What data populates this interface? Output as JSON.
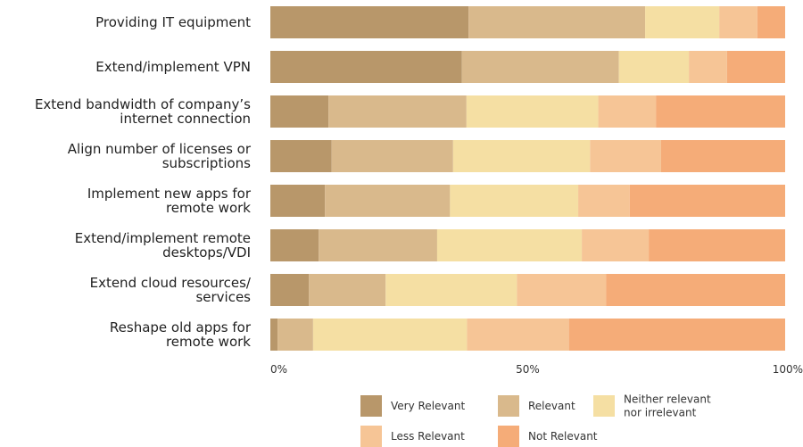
{
  "chart_data": {
    "type": "bar",
    "orientation": "horizontal",
    "stacked": "percent",
    "categories": [
      [
        "Providing IT equipment"
      ],
      [
        "Extend/implement VPN"
      ],
      [
        "Extend bandwidth of company’s",
        "internet connection"
      ],
      [
        "Align number of licenses or",
        "subscriptions"
      ],
      [
        "Implement new apps for",
        "remote work"
      ],
      [
        "Extend/implement remote",
        "desktops/VDI"
      ],
      [
        "Extend cloud resources/",
        "services"
      ],
      [
        "Reshape old apps for",
        "remote work"
      ]
    ],
    "series": [
      {
        "name": "Very Relevant",
        "color": "#B8976A",
        "values": [
          38.5,
          37.2,
          11.3,
          11.9,
          10.6,
          9.4,
          7.5,
          1.4
        ]
      },
      {
        "name": "Relevant",
        "color": "#D9B98C",
        "values": [
          34.3,
          30.5,
          26.8,
          23.6,
          24.3,
          23.0,
          14.9,
          6.9
        ]
      },
      {
        "name": "Neither relevant nor irrelevant",
        "color": "#F5DFA3",
        "values": [
          14.4,
          13.6,
          25.6,
          26.6,
          24.9,
          28.1,
          25.5,
          29.9
        ]
      },
      {
        "name": "Less Relevant",
        "color": "#F6C596",
        "values": [
          7.4,
          7.4,
          11.2,
          13.8,
          10.0,
          13.0,
          17.3,
          19.8
        ]
      },
      {
        "name": "Not Relevant",
        "color": "#F5AC78",
        "values": [
          5.4,
          11.3,
          25.1,
          24.1,
          30.2,
          26.5,
          34.8,
          42.0
        ]
      }
    ],
    "x_ticks": [
      "0%",
      "50%",
      "100%"
    ],
    "xlim": [
      0,
      100
    ],
    "grid": false,
    "legend": {
      "position": "bottom",
      "entries": [
        {
          "lines": [
            "Very Relevant"
          ],
          "color": "#B8976A"
        },
        {
          "lines": [
            "Relevant"
          ],
          "color": "#D9B98C"
        },
        {
          "lines": [
            "Neither relevant",
            "nor irrelevant"
          ],
          "color": "#F5DFA3"
        },
        {
          "lines": [
            "Less Relevant"
          ],
          "color": "#F6C596"
        },
        {
          "lines": [
            "Not Relevant"
          ],
          "color": "#F5AC78"
        }
      ]
    }
  }
}
